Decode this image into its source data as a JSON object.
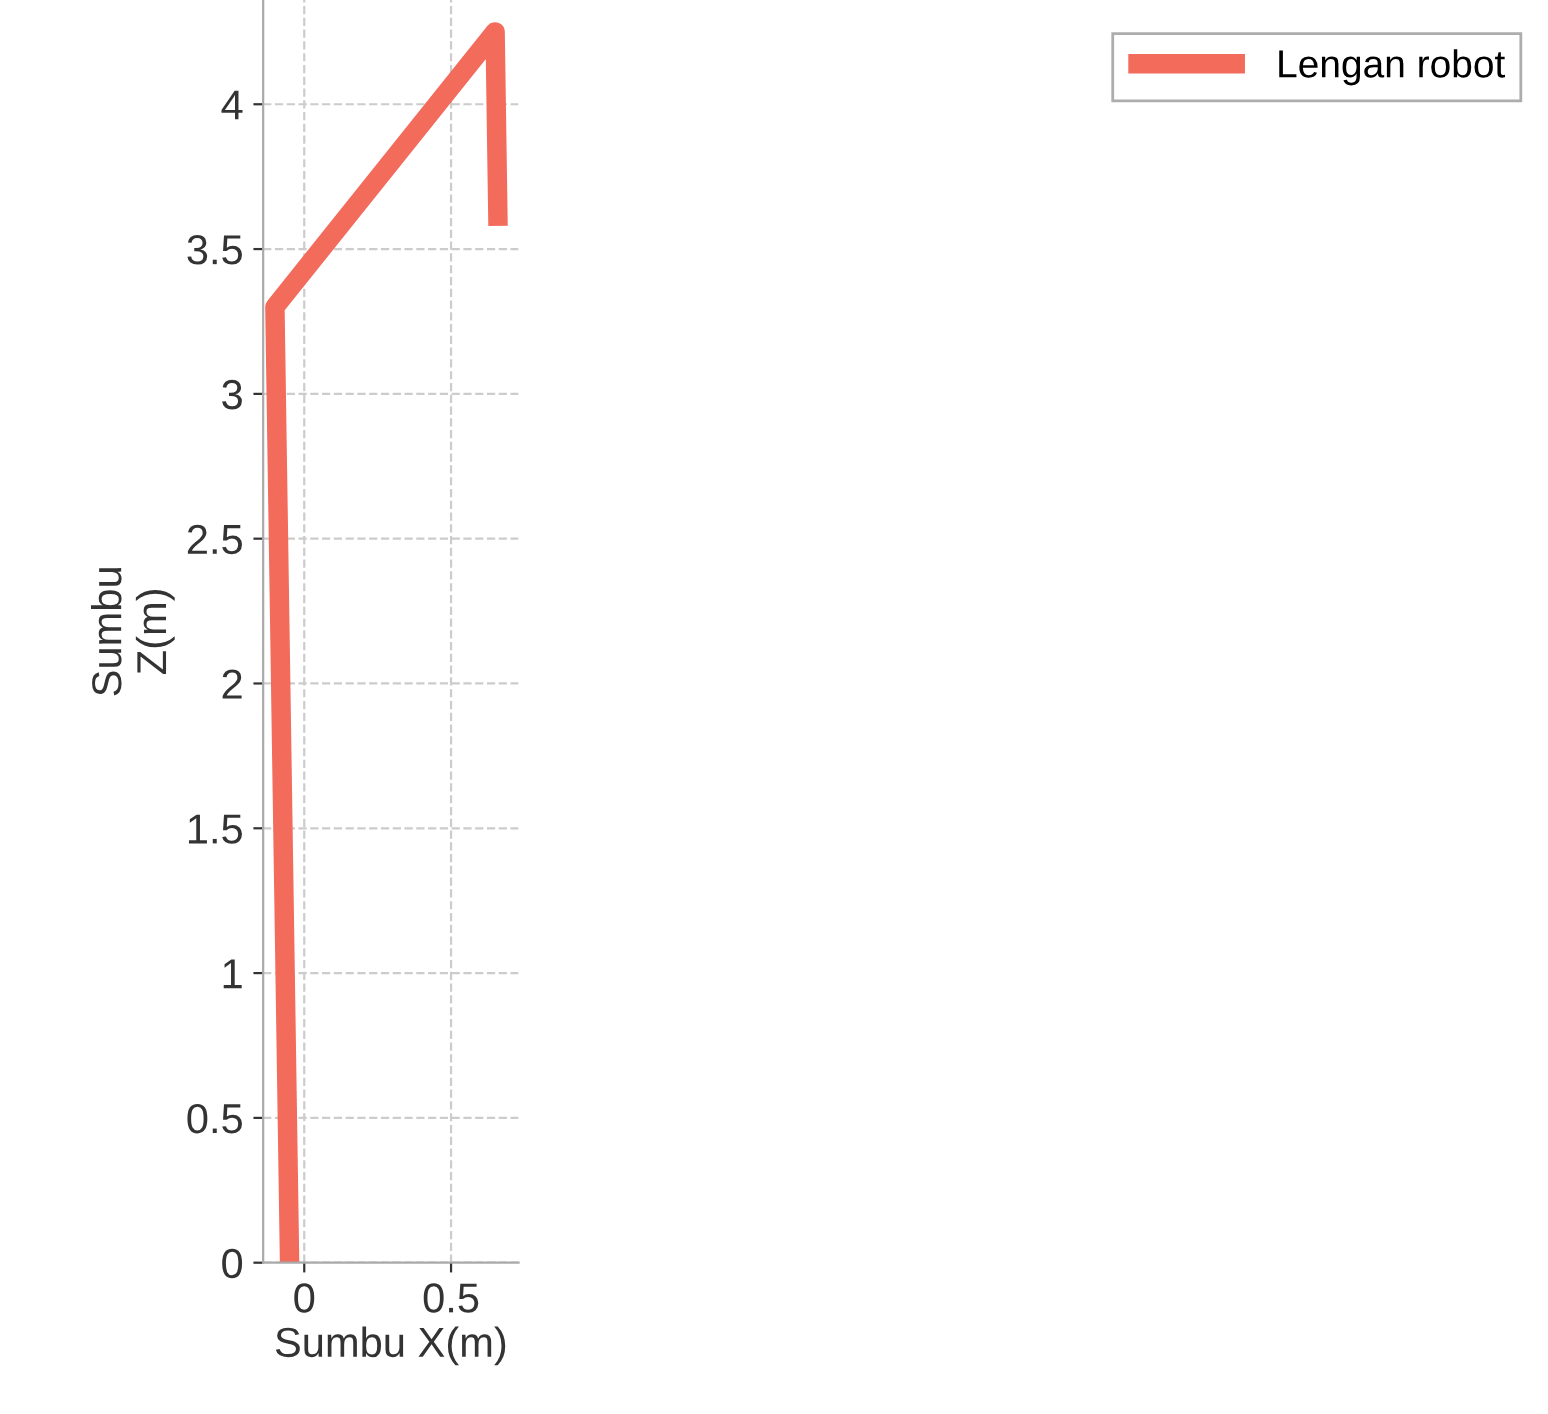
{
  "chart_data": {
    "type": "line",
    "xlabel": "Sumbu X(m)",
    "ylabel": "Sumbu\nZ(m)",
    "x": [
      -0.05,
      -0.1,
      0.65,
      0.66
    ],
    "series": [
      {
        "name": "Lengan robot",
        "color": "#f26b5b",
        "values": [
          0,
          3.3,
          4.25,
          3.58
        ]
      }
    ],
    "xlim": [
      -0.14,
      0.73
    ],
    "ylim": [
      0,
      4.36
    ],
    "xticks": [
      0,
      0.5
    ],
    "yticks": [
      0,
      0.5,
      1,
      1.5,
      2,
      2.5,
      3,
      3.5,
      4
    ],
    "grid": true,
    "legend": "top right",
    "line_style": "solid",
    "marker": "none"
  }
}
